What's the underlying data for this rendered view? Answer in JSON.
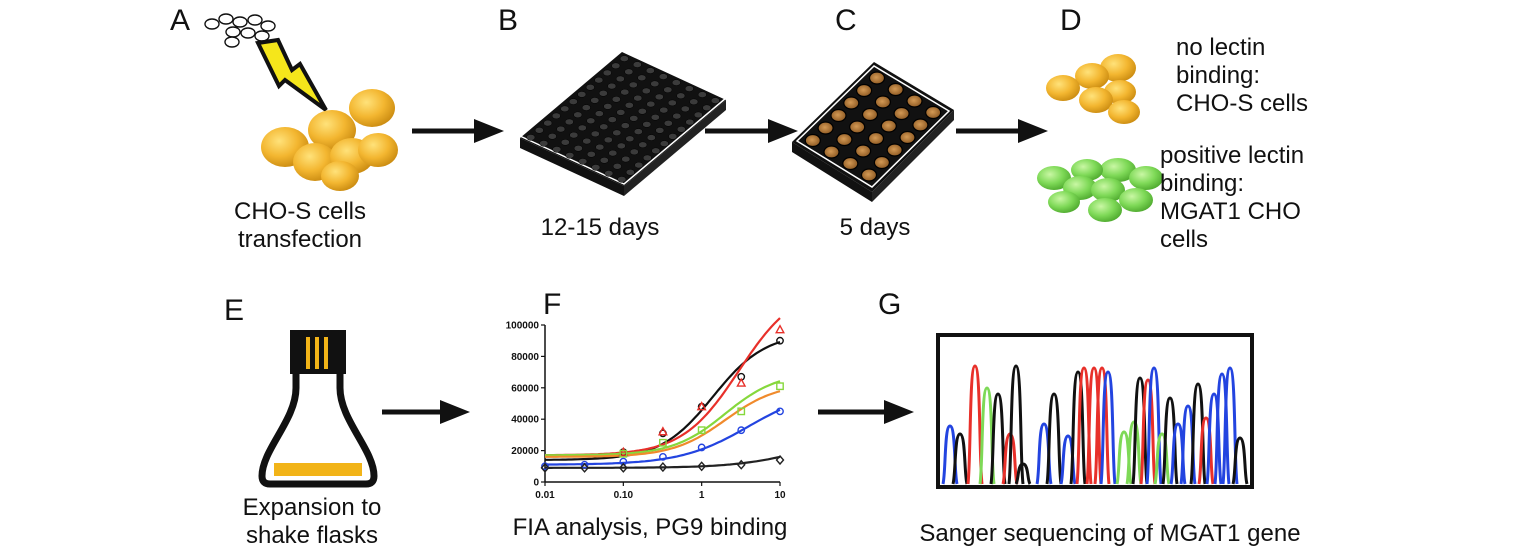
{
  "panels": {
    "A": {
      "letter": "A",
      "caption_l1": "CHO-S cells",
      "caption_l2": "transfection"
    },
    "B": {
      "letter": "B",
      "caption": "12-15 days"
    },
    "C": {
      "letter": "C",
      "caption": "5 days"
    },
    "D": {
      "letter": "D",
      "top_l1": "no lectin",
      "top_l2": "binding:",
      "top_l3": "CHO-S cells",
      "bottom_l1": "positive lectin",
      "bottom_l2": "binding:",
      "bottom_l3": "MGAT1 CHO",
      "bottom_l4": "cells"
    },
    "E": {
      "letter": "E",
      "caption_l1": "Expansion to",
      "caption_l2": "shake flasks"
    },
    "F": {
      "letter": "F",
      "caption": "FIA analysis, PG9 binding"
    },
    "G": {
      "letter": "G",
      "caption": "Sanger sequencing of MGAT1 gene"
    }
  },
  "colors": {
    "cell_yellow": "#f0b429",
    "cell_green": "#7ed957",
    "lightning": "#f5e61b",
    "flask_yellow": "#f2b418",
    "well_brown": "#b07a3a",
    "series_black": "#111111",
    "series_red": "#e8302a",
    "series_green": "#86d83c",
    "series_orange": "#f08a2c",
    "series_blue": "#2344e0",
    "series_gray": "#222222"
  },
  "chart_data": {
    "type": "line",
    "x_scale": "log",
    "xlim": [
      0.01,
      10
    ],
    "ylim": [
      0,
      100000
    ],
    "x_ticks": [
      "0.01",
      "0.10",
      "1",
      "10"
    ],
    "y_ticks": [
      "0",
      "20000",
      "40000",
      "60000",
      "80000",
      "100000"
    ],
    "series": [
      {
        "color": "#111111",
        "marker": "circle",
        "x": [
          0.1,
          0.32,
          1,
          3.2,
          10
        ],
        "y": [
          19000,
          31000,
          48000,
          67000,
          90000
        ]
      },
      {
        "color": "#e8302a",
        "marker": "triangle",
        "x": [
          0.1,
          0.32,
          1,
          3.2,
          10
        ],
        "y": [
          19000,
          32000,
          48000,
          63000,
          97000
        ]
      },
      {
        "color": "#86d83c",
        "marker": "square",
        "x": [
          0.1,
          0.32,
          1,
          3.2,
          10
        ],
        "y": [
          18000,
          25000,
          33000,
          45000,
          61000
        ]
      },
      {
        "color": "#2344e0",
        "marker": "circle",
        "x": [
          0.01,
          0.032,
          0.1,
          0.32,
          1,
          3.2,
          10
        ],
        "y": [
          10000,
          11000,
          13000,
          16000,
          22000,
          33000,
          45000
        ]
      },
      {
        "color": "#222222",
        "marker": "diamond",
        "x": [
          0.01,
          0.032,
          0.1,
          0.32,
          1,
          3.2,
          10
        ],
        "y": [
          9000,
          9000,
          9000,
          9500,
          10000,
          11000,
          14000
        ]
      }
    ],
    "curves": [
      {
        "color": "#111111",
        "bottom": 14000,
        "top": 95000,
        "ec50": 1.4,
        "hill": 1.3
      },
      {
        "color": "#e8302a",
        "bottom": 17000,
        "top": 125000,
        "ec50": 3.0,
        "hill": 1.2
      },
      {
        "color": "#86d83c",
        "bottom": 17000,
        "top": 70000,
        "ec50": 2.0,
        "hill": 1.3
      },
      {
        "color": "#f08a2c",
        "bottom": 16000,
        "top": 63000,
        "ec50": 2.0,
        "hill": 1.3
      },
      {
        "color": "#2344e0",
        "bottom": 11000,
        "top": 60000,
        "ec50": 4.0,
        "hill": 1.0
      },
      {
        "color": "#222222",
        "bottom": 9000,
        "top": 30000,
        "ec50": 20,
        "hill": 1.0
      }
    ]
  }
}
